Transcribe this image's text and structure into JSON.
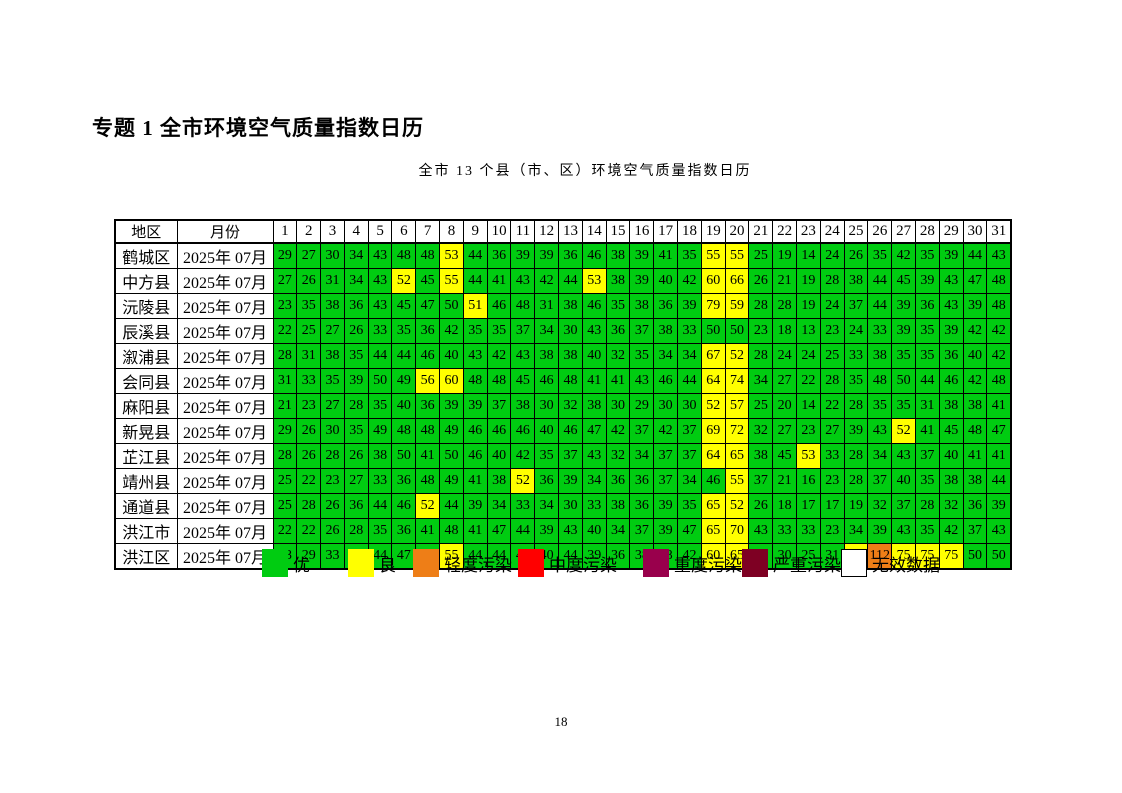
{
  "page": {
    "title": "专题 1 全市环境空气质量指数日历",
    "subtitle": "全市 13 个县（市、区）环境空气质量指数日历",
    "page_number": "18"
  },
  "table": {
    "region_header": "地区",
    "month_header": "月份",
    "days": [
      1,
      2,
      3,
      4,
      5,
      6,
      7,
      8,
      9,
      10,
      11,
      12,
      13,
      14,
      15,
      16,
      17,
      18,
      19,
      20,
      21,
      22,
      23,
      24,
      25,
      26,
      27,
      28,
      29,
      30,
      31
    ],
    "rows": [
      {
        "region": "鹤城区",
        "month": "2025年 07月",
        "values": [
          29,
          27,
          30,
          34,
          43,
          48,
          48,
          53,
          44,
          36,
          39,
          39,
          36,
          46,
          38,
          39,
          41,
          35,
          55,
          55,
          25,
          19,
          14,
          24,
          26,
          35,
          42,
          35,
          39,
          44,
          43
        ]
      },
      {
        "region": "中方县",
        "month": "2025年 07月",
        "values": [
          27,
          26,
          31,
          34,
          43,
          52,
          45,
          55,
          44,
          41,
          43,
          42,
          44,
          53,
          38,
          39,
          40,
          42,
          60,
          66,
          26,
          21,
          19,
          28,
          38,
          44,
          45,
          39,
          43,
          47,
          48
        ]
      },
      {
        "region": "沅陵县",
        "month": "2025年 07月",
        "values": [
          23,
          35,
          38,
          36,
          43,
          45,
          47,
          50,
          51,
          46,
          48,
          31,
          38,
          46,
          35,
          38,
          36,
          39,
          79,
          59,
          28,
          28,
          19,
          24,
          37,
          44,
          39,
          36,
          43,
          39,
          48
        ]
      },
      {
        "region": "辰溪县",
        "month": "2025年 07月",
        "values": [
          22,
          25,
          27,
          26,
          33,
          35,
          36,
          42,
          35,
          35,
          37,
          34,
          30,
          43,
          36,
          37,
          38,
          33,
          50,
          50,
          23,
          18,
          13,
          23,
          24,
          33,
          39,
          35,
          39,
          42,
          42
        ]
      },
      {
        "region": "溆浦县",
        "month": "2025年 07月",
        "values": [
          28,
          31,
          38,
          35,
          44,
          44,
          46,
          40,
          43,
          42,
          43,
          38,
          38,
          40,
          32,
          35,
          34,
          34,
          67,
          52,
          28,
          24,
          24,
          25,
          33,
          38,
          35,
          35,
          36,
          40,
          42
        ]
      },
      {
        "region": "会同县",
        "month": "2025年 07月",
        "values": [
          31,
          33,
          35,
          39,
          50,
          49,
          56,
          60,
          48,
          48,
          45,
          46,
          48,
          41,
          41,
          43,
          46,
          44,
          64,
          74,
          34,
          27,
          22,
          28,
          35,
          48,
          50,
          44,
          46,
          42,
          48
        ]
      },
      {
        "region": "麻阳县",
        "month": "2025年 07月",
        "values": [
          21,
          23,
          27,
          28,
          35,
          40,
          36,
          39,
          39,
          37,
          38,
          30,
          32,
          38,
          30,
          29,
          30,
          30,
          52,
          57,
          25,
          20,
          14,
          22,
          28,
          35,
          35,
          31,
          38,
          38,
          41
        ]
      },
      {
        "region": "新晃县",
        "month": "2025年 07月",
        "values": [
          29,
          26,
          30,
          35,
          49,
          48,
          48,
          49,
          46,
          46,
          46,
          40,
          46,
          47,
          42,
          37,
          42,
          37,
          69,
          72,
          32,
          27,
          23,
          27,
          39,
          43,
          52,
          41,
          45,
          48,
          47
        ]
      },
      {
        "region": "芷江县",
        "month": "2025年 07月",
        "values": [
          28,
          26,
          28,
          26,
          38,
          50,
          41,
          50,
          46,
          40,
          42,
          35,
          37,
          43,
          32,
          34,
          37,
          37,
          64,
          65,
          38,
          45,
          53,
          33,
          28,
          34,
          43,
          37,
          40,
          41,
          41
        ]
      },
      {
        "region": "靖州县",
        "month": "2025年 07月",
        "values": [
          25,
          22,
          23,
          27,
          33,
          36,
          48,
          49,
          41,
          38,
          52,
          36,
          39,
          34,
          36,
          36,
          37,
          34,
          46,
          55,
          37,
          21,
          16,
          23,
          28,
          37,
          40,
          35,
          38,
          38,
          44
        ]
      },
      {
        "region": "通道县",
        "month": "2025年 07月",
        "values": [
          25,
          28,
          26,
          36,
          44,
          46,
          52,
          44,
          39,
          34,
          33,
          34,
          30,
          33,
          38,
          36,
          39,
          35,
          65,
          52,
          26,
          18,
          17,
          17,
          19,
          32,
          37,
          28,
          32,
          36,
          39
        ]
      },
      {
        "region": "洪江市",
        "month": "2025年 07月",
        "values": [
          22,
          22,
          26,
          28,
          35,
          36,
          41,
          48,
          41,
          47,
          44,
          39,
          43,
          40,
          34,
          37,
          39,
          47,
          65,
          70,
          43,
          33,
          33,
          23,
          34,
          39,
          43,
          35,
          42,
          37,
          43
        ]
      },
      {
        "region": "洪江区",
        "month": "2025年 07月",
        "values": [
          28,
          29,
          33,
          37,
          44,
          47,
          49,
          55,
          44,
          44,
          43,
          40,
          44,
          39,
          36,
          38,
          38,
          42,
          60,
          65,
          32,
          30,
          25,
          31,
          53,
          112,
          75,
          75,
          75,
          50,
          50
        ]
      }
    ]
  },
  "aqi_levels": [
    {
      "label": "优",
      "max": 50,
      "color": "#00CC11"
    },
    {
      "label": "良",
      "max": 100,
      "color": "#FFFF00"
    },
    {
      "label": "轻度污染",
      "max": 150,
      "color": "#EE7E17"
    },
    {
      "label": "中度污染",
      "max": 200,
      "color": "#FF0000"
    },
    {
      "label": "重度污染",
      "max": 300,
      "color": "#99004C"
    },
    {
      "label": "严重污染",
      "max": 500,
      "color": "#7E0023"
    },
    {
      "label": "无效数据",
      "max": null,
      "color": "#FFFFFF"
    }
  ]
}
